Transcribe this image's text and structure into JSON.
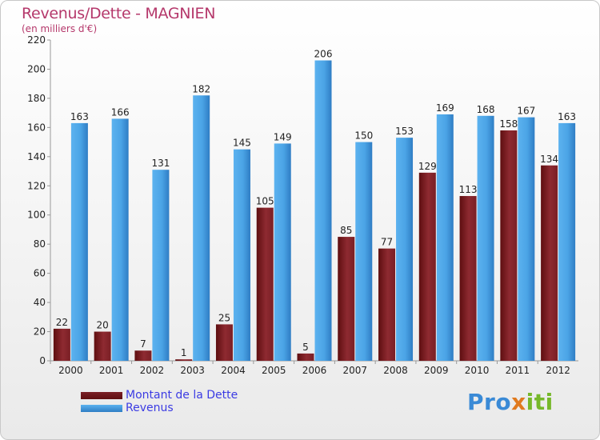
{
  "title": "Revenus/Dette - MAGNIEN",
  "subtitle": "(en milliers d'€)",
  "legend": {
    "debt_label": "Montant de la Dette",
    "revenue_label": "Revenus"
  },
  "logo": {
    "part1": "Pro",
    "part2": "x",
    "part3": "iti"
  },
  "colors": {
    "title": "#b5386b",
    "debt_dark": "#5e0e10",
    "debt_light": "#8e2a31",
    "revenue_dark": "#2f7dc4",
    "revenue_light": "#5cb2ef",
    "legend_text": "#3b3be3"
  },
  "chart_data": {
    "type": "bar",
    "categories": [
      "2000",
      "2001",
      "2002",
      "2003",
      "2004",
      "2005",
      "2006",
      "2007",
      "2008",
      "2009",
      "2010",
      "2011",
      "2012"
    ],
    "series": [
      {
        "name": "Montant de la Dette",
        "values": [
          22,
          20,
          7,
          1,
          25,
          105,
          5,
          85,
          77,
          129,
          113,
          158,
          134
        ]
      },
      {
        "name": "Revenus",
        "values": [
          163,
          166,
          131,
          182,
          145,
          149,
          206,
          150,
          153,
          169,
          168,
          167,
          163
        ]
      }
    ],
    "ylim": [
      0,
      220
    ],
    "yticks": [
      0,
      20,
      40,
      60,
      80,
      100,
      120,
      140,
      160,
      180,
      200,
      220
    ],
    "grid": false,
    "legend_position": "bottom-left"
  }
}
